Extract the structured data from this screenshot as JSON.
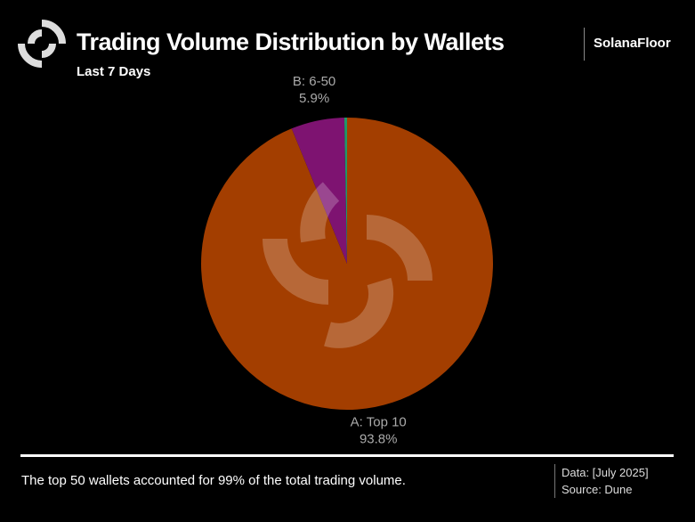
{
  "header": {
    "title": "Trading Volume Distribution by Wallets",
    "subtitle": "Last 7 Days",
    "brand": "SolanaFloor"
  },
  "footer": {
    "note": "The top 50 wallets accounted for 99% of the total trading volume.",
    "data_date": "Data: [July 2025]",
    "source": "Source: Dune"
  },
  "chart_data": {
    "type": "pie",
    "title": "Trading Volume Distribution by Wallets",
    "slices": [
      {
        "name": "A: Top 10",
        "value": 93.8,
        "label": "93.8%",
        "color": "#a33e00"
      },
      {
        "name": "B: 6-50",
        "value": 5.9,
        "label": "5.9%",
        "color": "#7e1371"
      },
      {
        "name": "",
        "value": 0.3,
        "label": "",
        "color": "#1f9a6a"
      }
    ],
    "start": "top",
    "direction": "clockwise"
  }
}
